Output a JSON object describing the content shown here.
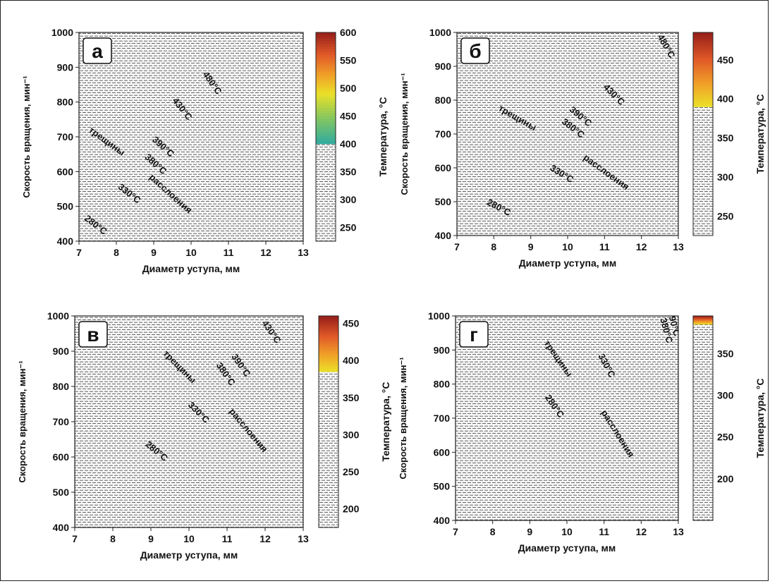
{
  "chart_data": [
    {
      "panel": "а",
      "type": "heatmap",
      "xlabel": "Диаметр уступа, мм",
      "ylabel": "Скорость вращения, мин⁻¹",
      "cbar_label": "Температура, °C",
      "xlim": [
        7,
        13
      ],
      "ylim": [
        400,
        1000
      ],
      "x_ticks": [
        7,
        8,
        9,
        10,
        11,
        12,
        13
      ],
      "y_ticks": [
        400,
        500,
        600,
        700,
        800,
        900,
        1000
      ],
      "cbar_range": [
        225,
        600
      ],
      "cbar_ticks": [
        250,
        300,
        350,
        400,
        450,
        500,
        550,
        600
      ],
      "threshold": 400,
      "contours": [
        {
          "label": "280°C",
          "T": 280,
          "label_at": [
            7.4,
            440
          ],
          "label_angle": 38
        },
        {
          "label": "330°C",
          "T": 330,
          "label_at": [
            8.3,
            530
          ],
          "label_angle": 38
        },
        {
          "label": "380°C",
          "T": 380,
          "label_at": [
            9.0,
            615
          ],
          "label_angle": 42
        },
        {
          "label": "390°C",
          "T": 390,
          "label_at": [
            9.2,
            665
          ],
          "label_angle": 42
        },
        {
          "label": "430°C",
          "T": 430,
          "label_at": [
            9.7,
            775
          ],
          "label_angle": 52
        },
        {
          "label": "480°C",
          "T": 480,
          "label_at": [
            10.5,
            850
          ],
          "label_angle": 55
        }
      ],
      "annotations": [
        {
          "text": "трещины",
          "at": [
            7.7,
            680
          ],
          "angle": 36
        },
        {
          "text": "расслоения",
          "at": [
            9.4,
            530
          ],
          "angle": 42
        }
      ]
    },
    {
      "panel": "б",
      "type": "heatmap",
      "xlabel": "Диаметр уступа, мм",
      "ylabel": "Скорость вращения, мин⁻¹",
      "cbar_label": "Температура, °C",
      "xlim": [
        7,
        13
      ],
      "ylim": [
        400,
        1000
      ],
      "x_ticks": [
        7,
        8,
        9,
        10,
        11,
        12,
        13
      ],
      "y_ticks": [
        400,
        500,
        600,
        700,
        800,
        900,
        1000
      ],
      "cbar_range": [
        225,
        485
      ],
      "cbar_ticks": [
        250,
        300,
        350,
        400,
        450
      ],
      "threshold": 390,
      "contours": [
        {
          "label": "280°C",
          "T": 280,
          "label_at": [
            8.1,
            475
          ],
          "label_angle": 28
        },
        {
          "label": "330°C",
          "T": 330,
          "label_at": [
            9.8,
            575
          ],
          "label_angle": 32
        },
        {
          "label": "380°C",
          "T": 380,
          "label_at": [
            10.1,
            710
          ],
          "label_angle": 38
        },
        {
          "label": "390°C",
          "T": 390,
          "label_at": [
            10.3,
            745
          ],
          "label_angle": 40
        },
        {
          "label": "430°C",
          "T": 430,
          "label_at": [
            11.2,
            810
          ],
          "label_angle": 45
        },
        {
          "label": "480°C",
          "T": 480,
          "label_at": [
            12.6,
            955
          ],
          "label_angle": 60
        }
      ],
      "annotations": [
        {
          "text": "трещины",
          "at": [
            8.6,
            740
          ],
          "angle": 30
        },
        {
          "text": "расслоения",
          "at": [
            11.0,
            580
          ],
          "angle": 36
        }
      ]
    },
    {
      "panel": "в",
      "type": "heatmap",
      "xlabel": "Диаметр уступа, мм",
      "ylabel": "Скорость вращения, мин⁻¹",
      "cbar_label": "Температура, °C",
      "xlim": [
        7,
        13
      ],
      "ylim": [
        400,
        1000
      ],
      "x_ticks": [
        7,
        8,
        9,
        10,
        11,
        12,
        13
      ],
      "y_ticks": [
        400,
        500,
        600,
        700,
        800,
        900,
        1000
      ],
      "cbar_range": [
        175,
        460
      ],
      "cbar_ticks": [
        200,
        250,
        300,
        350,
        400,
        450
      ],
      "threshold": 385,
      "contours": [
        {
          "label": "280°C",
          "T": 280,
          "label_at": [
            9.1,
            610
          ],
          "label_angle": 40
        },
        {
          "label": "330°C",
          "T": 330,
          "label_at": [
            10.2,
            720
          ],
          "label_angle": 45
        },
        {
          "label": "380°C",
          "T": 380,
          "label_at": [
            10.9,
            830
          ],
          "label_angle": 55
        },
        {
          "label": "390°C",
          "T": 390,
          "label_at": [
            11.3,
            855
          ],
          "label_angle": 55
        },
        {
          "label": "430°C",
          "T": 430,
          "label_at": [
            12.1,
            950
          ],
          "label_angle": 55
        }
      ],
      "annotations": [
        {
          "text": "трещины",
          "at": [
            9.7,
            850
          ],
          "angle": 45
        },
        {
          "text": "расслоения",
          "at": [
            11.5,
            670
          ],
          "angle": 50
        }
      ]
    },
    {
      "panel": "г",
      "type": "heatmap",
      "xlabel": "Диаметр уступа, мм",
      "ylabel": "Скорость вращения, мин⁻¹",
      "cbar_label": "Температура, °C",
      "xlim": [
        7,
        13
      ],
      "ylim": [
        400,
        1000
      ],
      "x_ticks": [
        7,
        8,
        9,
        10,
        11,
        12,
        13
      ],
      "y_ticks": [
        400,
        500,
        600,
        700,
        800,
        900,
        1000
      ],
      "cbar_range": [
        150,
        395
      ],
      "cbar_ticks": [
        200,
        250,
        300,
        350
      ],
      "threshold": 385,
      "contours": [
        {
          "label": "280°C",
          "T": 280,
          "label_at": [
            9.6,
            730
          ],
          "label_angle": 55
        },
        {
          "label": "330°C",
          "T": 330,
          "label_at": [
            11.0,
            850
          ],
          "label_angle": 62
        },
        {
          "label": "380°C",
          "T": 380,
          "label_at": [
            12.6,
            955
          ],
          "label_angle": 75
        },
        {
          "label": "390°C",
          "T": 390,
          "label_at": [
            12.8,
            975
          ],
          "label_angle": 75
        }
      ],
      "annotations": [
        {
          "text": "трещины",
          "at": [
            9.7,
            870
          ],
          "angle": 55
        },
        {
          "text": "расслоения",
          "at": [
            11.3,
            650
          ],
          "angle": 58
        }
      ]
    }
  ]
}
